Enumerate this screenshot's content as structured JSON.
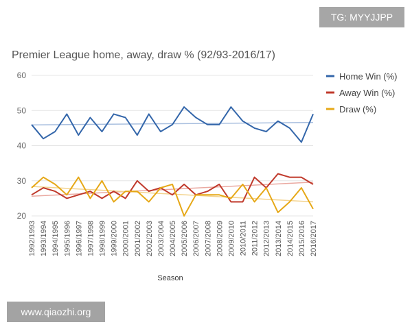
{
  "watermark_top": "TG: MYYJJPP",
  "watermark_bottom": "www.qiaozhi.org",
  "chart_data": {
    "type": "line",
    "title": "Premier League home, away, draw % (92/93-2016/17)",
    "xlabel": "Season",
    "ylabel": "",
    "ylim": [
      20,
      60
    ],
    "yticks": [
      20,
      30,
      40,
      50,
      60
    ],
    "grid": "horizontal",
    "legend": "right",
    "categories": [
      "1992/1993",
      "1993/1994",
      "1994/1995",
      "1995/1996",
      "1996/1997",
      "1997/1998",
      "1998/1999",
      "1999/2000",
      "2000/2001",
      "2001/2002",
      "2002/2003",
      "2003/2004",
      "2004/2005",
      "2005/2006",
      "2006/2007",
      "2007/2008",
      "2008/2009",
      "2009/2010",
      "2010/2011",
      "2011/2012",
      "2012/2013",
      "2013/2014",
      "2014/2015",
      "2015/2016",
      "2016/2017"
    ],
    "series": [
      {
        "name": "Home Win (%)",
        "color": "#3366aa",
        "trend_color": "#a9bfdf",
        "trend": [
          45.9,
          46.6
        ],
        "values": [
          46,
          42,
          44,
          49,
          43,
          48,
          44,
          49,
          48,
          43,
          49,
          44,
          46,
          51,
          48,
          46,
          46,
          51,
          47,
          45,
          44,
          47,
          45,
          41,
          49
        ]
      },
      {
        "name": "Away Win (%)",
        "color": "#c0392b",
        "trend_color": "#eaa9a1",
        "trend": [
          25.6,
          29.6
        ],
        "values": [
          26,
          28,
          27,
          25,
          26,
          27,
          25,
          27,
          25,
          30,
          27,
          28,
          26,
          29,
          26,
          27,
          29,
          24,
          24,
          31,
          28,
          32,
          31,
          31,
          29
        ]
      },
      {
        "name": "Draw (%)",
        "color": "#e6a817",
        "trend_color": "#f3d38e",
        "trend": [
          28.4,
          24.0
        ],
        "values": [
          28,
          31,
          29,
          26,
          31,
          25,
          30,
          24,
          27,
          27,
          24,
          28,
          29,
          20,
          26,
          26,
          26,
          25,
          29,
          24,
          28,
          21,
          24,
          28,
          22
        ]
      }
    ]
  }
}
